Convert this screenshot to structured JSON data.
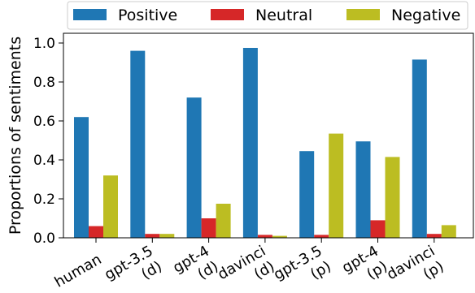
{
  "chart_data": {
    "type": "bar",
    "ylabel": "Proportions of sentiments",
    "xlabel": "",
    "ylim": [
      0,
      1.05
    ],
    "yticks": [
      "0.0",
      "0.2",
      "0.4",
      "0.6",
      "0.8",
      "1.0"
    ],
    "legend_position": "top",
    "categories": [
      [
        "human"
      ],
      [
        "gpt-3.5",
        "(d)"
      ],
      [
        "gpt-4",
        "(d)"
      ],
      [
        "davinci",
        "(d)"
      ],
      [
        "gpt-3.5",
        "(p)"
      ],
      [
        "gpt-4",
        "(p)"
      ],
      [
        "davinci",
        "(p)"
      ]
    ],
    "series": [
      {
        "name": "Positive",
        "color": "#1f77b4",
        "values": [
          0.62,
          0.96,
          0.72,
          0.975,
          0.445,
          0.495,
          0.915
        ]
      },
      {
        "name": "Neutral",
        "color": "#d62728",
        "values": [
          0.06,
          0.02,
          0.1,
          0.015,
          0.015,
          0.09,
          0.02
        ]
      },
      {
        "name": "Negative",
        "color": "#bcbd22",
        "values": [
          0.32,
          0.02,
          0.175,
          0.01,
          0.535,
          0.415,
          0.065
        ]
      }
    ]
  }
}
